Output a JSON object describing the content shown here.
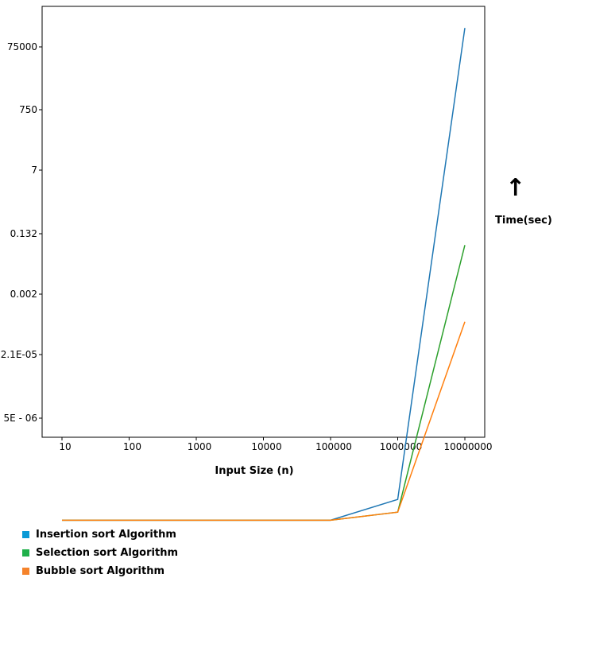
{
  "chart_data": {
    "type": "line",
    "title": "",
    "xlabel": "Input Size (n)",
    "ylabel": "Time(sec)",
    "y_scale": "log",
    "x_tick_labels": [
      "10",
      "100",
      "1000",
      "10000",
      "100000",
      "1000000",
      "10000000"
    ],
    "y_tick_labels": [
      "75000",
      "750",
      "7",
      "0.132",
      "0.002",
      "2.1E-05",
      "5E - 06"
    ],
    "legend_position": "below chart, left",
    "series": [
      {
        "name": "Insertion sort Algorithm",
        "color": "#1f77b4",
        "x": [
          10,
          100,
          1000,
          10000,
          100000,
          1000000,
          10000000
        ],
        "y": [
          5e-07,
          5e-07,
          5e-07,
          5e-07,
          5e-07,
          8e-07,
          300000
        ]
      },
      {
        "name": "Selection sort Algorithm",
        "color": "#2ca02c",
        "x": [
          10,
          100,
          1000,
          10000,
          100000,
          1000000,
          10000000
        ],
        "y": [
          5e-07,
          5e-07,
          5e-07,
          5e-07,
          5e-07,
          6e-07,
          0.06
        ]
      },
      {
        "name": "Bubble sort Algorithm",
        "color": "#ff7f0e",
        "x": [
          10,
          100,
          1000,
          10000,
          100000,
          1000000,
          10000000
        ],
        "y": [
          5e-07,
          5e-07,
          5e-07,
          5e-07,
          5e-07,
          6e-07,
          0.00025
        ]
      }
    ]
  },
  "legend": {
    "items": [
      {
        "label": "Insertion sort Algorithm",
        "color": "#0a9ad6"
      },
      {
        "label": "Selection sort Algorithm",
        "color": "#1fb04a"
      },
      {
        "label": "Bubble sort Algorithm",
        "color": "#f5832b"
      }
    ]
  },
  "annotations": {
    "arrow": "↑"
  }
}
